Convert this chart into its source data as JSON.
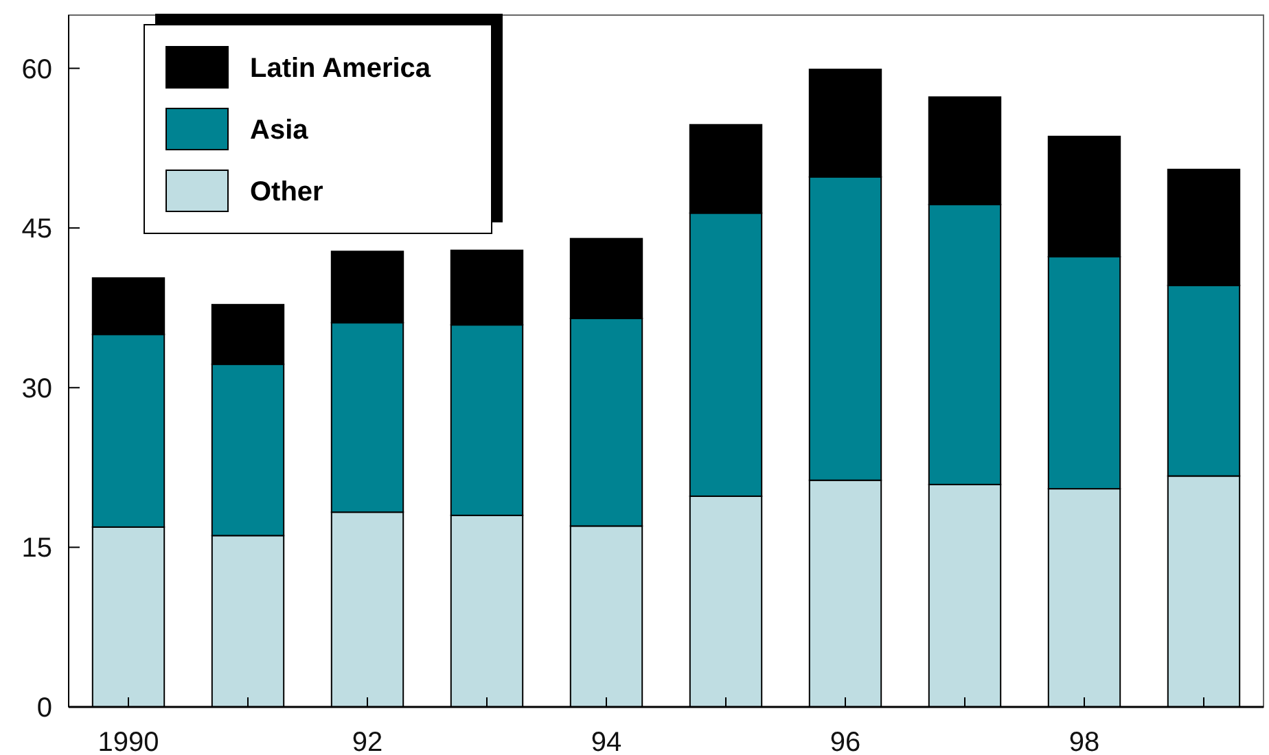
{
  "chart_data": {
    "type": "bar",
    "stacked": true,
    "categories": [
      "1990",
      null,
      "92",
      null,
      "94",
      null,
      "96",
      null,
      "98",
      null
    ],
    "series": [
      {
        "name": "Other",
        "color": "#bfdde2",
        "values": [
          16.9,
          16.1,
          18.3,
          18.0,
          17.0,
          19.8,
          21.3,
          20.9,
          20.5,
          21.7
        ]
      },
      {
        "name": "Asia",
        "color": "#008392",
        "values": [
          18.1,
          16.1,
          17.8,
          17.9,
          19.5,
          26.6,
          28.5,
          26.3,
          21.8,
          17.9
        ]
      },
      {
        "name": "Latin America",
        "color": "#000000",
        "values": [
          5.3,
          5.6,
          6.7,
          7.0,
          7.5,
          8.3,
          10.1,
          10.1,
          11.3,
          10.9
        ]
      }
    ],
    "ylim": [
      0,
      65
    ],
    "yticks": [
      0,
      15,
      30,
      45,
      60
    ],
    "grid": false,
    "legend": "top left"
  }
}
